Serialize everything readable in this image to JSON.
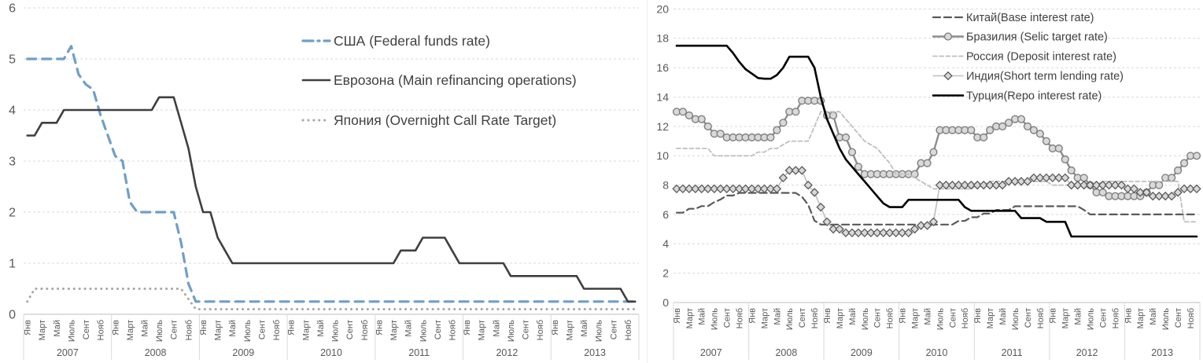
{
  "page": {
    "background": "#ffffff"
  },
  "colors": {
    "axis_text": "#595959",
    "gridline": "#d9d9d9",
    "axis_line": "#bfbfbf",
    "legend_text": "#404040",
    "panel_divider": "#ececec"
  },
  "chart_data": [
    {
      "type": "line",
      "title": "",
      "group": "developed-economies-policy-rates",
      "y_axis": {
        "min": 0,
        "max": 6,
        "step": 1,
        "tick_labels": [
          "0",
          "1",
          "2",
          "3",
          "4",
          "5",
          "6"
        ]
      },
      "years": [
        "2007",
        "2008",
        "2009",
        "2010",
        "2011",
        "2012",
        "2013"
      ],
      "month_tick_labels": [
        "Янв",
        "Март",
        "Май",
        "Июль",
        "Сент",
        "Нояб"
      ],
      "grid": "horizontal-dashed",
      "legend_position": "inside-upper-right",
      "series": [
        {
          "key": "usa",
          "name": "США (Federal funds rate)",
          "color": "#6f9fc8",
          "style": "long-dash",
          "legend_dash": "13 6 2 6",
          "width": 3.2,
          "marker": "none",
          "monthly_values": [
            5,
            5,
            5,
            5,
            5,
            5,
            5.25,
            4.7,
            4.5,
            4.4,
            3.9,
            3.5,
            3.1,
            3,
            2.2,
            2,
            2,
            2,
            2,
            2,
            2,
            1.4,
            0.6,
            0.25,
            0.25,
            0.25,
            0.25,
            0.25,
            0.25,
            0.25,
            0.25,
            0.25,
            0.25,
            0.25,
            0.25,
            0.25,
            0.25,
            0.25,
            0.25,
            0.25,
            0.25,
            0.25,
            0.25,
            0.25,
            0.25,
            0.25,
            0.25,
            0.25,
            0.25,
            0.25,
            0.25,
            0.25,
            0.25,
            0.25,
            0.25,
            0.25,
            0.25,
            0.25,
            0.25,
            0.25,
            0.25,
            0.25,
            0.25,
            0.25,
            0.25,
            0.25,
            0.25,
            0.25,
            0.25,
            0.25,
            0.25,
            0.25,
            0.25,
            0.25,
            0.25,
            0.25,
            0.25,
            0.25,
            0.25,
            0.25,
            0.25,
            0.25,
            0.25,
            0.25
          ]
        },
        {
          "key": "eurozone",
          "name": "Еврозона (Main refinancing operations)",
          "color": "#3f3f3f",
          "style": "solid",
          "width": 2.6,
          "marker": "none",
          "monthly_values": [
            3.5,
            3.5,
            3.75,
            3.75,
            3.75,
            4,
            4,
            4,
            4,
            4,
            4,
            4,
            4,
            4,
            4,
            4,
            4,
            4,
            4.25,
            4.25,
            4.25,
            3.75,
            3.25,
            2.5,
            2,
            2,
            1.5,
            1.25,
            1,
            1,
            1,
            1,
            1,
            1,
            1,
            1,
            1,
            1,
            1,
            1,
            1,
            1,
            1,
            1,
            1,
            1,
            1,
            1,
            1,
            1,
            1,
            1.25,
            1.25,
            1.25,
            1.5,
            1.5,
            1.5,
            1.5,
            1.25,
            1,
            1,
            1,
            1,
            1,
            1,
            1,
            0.75,
            0.75,
            0.75,
            0.75,
            0.75,
            0.75,
            0.75,
            0.75,
            0.75,
            0.75,
            0.5,
            0.5,
            0.5,
            0.5,
            0.5,
            0.5,
            0.25,
            0.25
          ]
        },
        {
          "key": "japan",
          "name": "Япония (Overnight Call Rate Target)",
          "color": "#a6a6a6",
          "style": "dot",
          "width": 3,
          "marker": "none",
          "monthly_values": [
            0.25,
            0.5,
            0.5,
            0.5,
            0.5,
            0.5,
            0.5,
            0.5,
            0.5,
            0.5,
            0.5,
            0.5,
            0.5,
            0.5,
            0.5,
            0.5,
            0.5,
            0.5,
            0.5,
            0.5,
            0.5,
            0.5,
            0.3,
            0.1,
            0.1,
            0.1,
            0.1,
            0.1,
            0.1,
            0.1,
            0.1,
            0.1,
            0.1,
            0.1,
            0.1,
            0.1,
            0.1,
            0.1,
            0.1,
            0.1,
            0.1,
            0.1,
            0.1,
            0.1,
            0.1,
            0.1,
            0.1,
            0.1,
            0.1,
            0.1,
            0.1,
            0.1,
            0.1,
            0.1,
            0.1,
            0.1,
            0.1,
            0.1,
            0.1,
            0.1,
            0.1,
            0.1,
            0.1,
            0.1,
            0.1,
            0.1,
            0.1,
            0.1,
            0.1,
            0.1,
            0.1,
            0.1,
            0.1,
            0.1,
            0.1,
            0.1,
            0.1,
            0.1,
            0.1,
            0.1,
            0.1,
            0.1,
            0.1,
            0.1
          ]
        }
      ]
    },
    {
      "type": "line",
      "title": "",
      "group": "emerging-economies-policy-rates",
      "y_axis": {
        "min": 0,
        "max": 20,
        "step": 2,
        "tick_labels": [
          "0",
          "2",
          "4",
          "6",
          "8",
          "10",
          "12",
          "14",
          "16",
          "18",
          "20"
        ]
      },
      "years": [
        "2007",
        "2008",
        "2009",
        "2010",
        "2011",
        "2012",
        "2013"
      ],
      "month_tick_labels": [
        "Янв",
        "Март",
        "Май",
        "Июль",
        "Сент",
        "Нояб"
      ],
      "grid": "horizontal-dashed",
      "legend_position": "inside-upper-right",
      "series": [
        {
          "key": "china",
          "name": "Китай(Base interest rate)",
          "color": "#595959",
          "style": "dash",
          "width": 2.2,
          "marker": "none",
          "monthly_values": [
            6.12,
            6.12,
            6.39,
            6.39,
            6.57,
            6.57,
            6.84,
            7.02,
            7.29,
            7.29,
            7.47,
            7.47,
            7.47,
            7.47,
            7.47,
            7.47,
            7.47,
            7.47,
            7.47,
            7.47,
            7.2,
            6.66,
            5.58,
            5.31,
            5.31,
            5.31,
            5.31,
            5.31,
            5.31,
            5.31,
            5.31,
            5.31,
            5.31,
            5.31,
            5.31,
            5.31,
            5.31,
            5.31,
            5.31,
            5.31,
            5.31,
            5.31,
            5.31,
            5.31,
            5.31,
            5.56,
            5.56,
            5.81,
            5.81,
            6.06,
            6.06,
            6.31,
            6.31,
            6.31,
            6.56,
            6.56,
            6.56,
            6.56,
            6.56,
            6.56,
            6.56,
            6.56,
            6.56,
            6.56,
            6.56,
            6.31,
            6,
            6,
            6,
            6,
            6,
            6,
            6,
            6,
            6,
            6,
            6,
            6,
            6,
            6,
            6,
            6,
            6,
            6
          ]
        },
        {
          "key": "brazil",
          "name": "Бразилия (Selic target rate)",
          "color": "#8c8c8c",
          "style": "solid",
          "width": 2.4,
          "marker": "circle",
          "marker_fill": "#d9d9d9",
          "marker_stroke": "#7f7f7f",
          "monthly_values": [
            13,
            13,
            12.75,
            12.5,
            12.5,
            12,
            11.5,
            11.5,
            11.25,
            11.25,
            11.25,
            11.25,
            11.25,
            11.25,
            11.25,
            11.25,
            11.75,
            12.25,
            13,
            13,
            13.75,
            13.75,
            13.75,
            13.75,
            12.75,
            12.75,
            11.25,
            11.25,
            10.25,
            9.25,
            8.75,
            8.75,
            8.75,
            8.75,
            8.75,
            8.75,
            8.75,
            8.75,
            8.75,
            9.5,
            9.5,
            10.25,
            11.75,
            11.75,
            11.75,
            11.75,
            11.75,
            11.75,
            11.25,
            11.25,
            11.75,
            12,
            12,
            12.25,
            12.5,
            12.5,
            12,
            11.75,
            11.5,
            11,
            10.5,
            10.5,
            9.75,
            9,
            8.5,
            8.5,
            8,
            7.5,
            7.5,
            7.25,
            7.25,
            7.25,
            7.25,
            7.25,
            7.25,
            7.5,
            8,
            8,
            8.5,
            8.5,
            9,
            9.5,
            10,
            10
          ]
        },
        {
          "key": "russia",
          "name": "Россия (Deposit interest rate)",
          "color": "#bfbfbf",
          "style": "small-dash",
          "width": 1.8,
          "marker": "none",
          "monthly_values": [
            10.5,
            10.5,
            10.5,
            10.5,
            10.5,
            10.5,
            10,
            10,
            10,
            10,
            10,
            10,
            10,
            10.25,
            10.25,
            10.5,
            10.5,
            10.75,
            11,
            11,
            11,
            11,
            12,
            13,
            13,
            13,
            13,
            12.5,
            12,
            11.5,
            11,
            10.75,
            10.5,
            10,
            9.5,
            8.75,
            8.75,
            8.75,
            8.5,
            8.25,
            8,
            7.75,
            7.75,
            7.75,
            7.75,
            7.75,
            7.75,
            7.75,
            8,
            8,
            8.25,
            8.25,
            8.25,
            8.25,
            8.25,
            8.25,
            8.25,
            8.25,
            8.25,
            8.25,
            8,
            8,
            8,
            8,
            8,
            8,
            8,
            8,
            8.25,
            8.25,
            8.25,
            8.25,
            8.25,
            8.25,
            8.25,
            8.25,
            8.25,
            8.25,
            8.25,
            8.25,
            8.25,
            5.5,
            5.5,
            5.5
          ]
        },
        {
          "key": "india",
          "name": "Индия(Short term lending rate)",
          "color": "#bfbfbf",
          "style": "solid",
          "width": 1.6,
          "marker": "diamond",
          "marker_fill": "#d9d9d9",
          "marker_stroke": "#595959",
          "monthly_values": [
            7.75,
            7.75,
            7.75,
            7.75,
            7.75,
            7.75,
            7.75,
            7.75,
            7.75,
            7.75,
            7.75,
            7.75,
            7.75,
            7.75,
            7.75,
            7.75,
            7.75,
            8.5,
            9,
            9,
            9,
            8,
            7.5,
            6.5,
            5.5,
            5,
            5,
            4.75,
            4.75,
            4.75,
            4.75,
            4.75,
            4.75,
            4.75,
            4.75,
            4.75,
            4.75,
            4.75,
            5,
            5.25,
            5.25,
            5.5,
            8,
            8,
            8,
            8,
            8,
            8,
            8,
            8,
            8,
            8,
            8,
            8.25,
            8.25,
            8.25,
            8.25,
            8.5,
            8.5,
            8.5,
            8.5,
            8.5,
            8.5,
            8,
            8,
            8,
            8,
            8,
            8,
            8,
            8,
            8,
            7.75,
            7.75,
            7.5,
            7.5,
            7.25,
            7.25,
            7.25,
            7.25,
            7.5,
            7.75,
            7.75,
            7.75
          ]
        },
        {
          "key": "turkey",
          "name": "Турция(Repo interest rate)",
          "color": "#000000",
          "style": "solid",
          "width": 2.6,
          "marker": "none",
          "monthly_values": [
            17.5,
            17.5,
            17.5,
            17.5,
            17.5,
            17.5,
            17.5,
            17.5,
            17.5,
            17,
            16.4,
            15.9,
            15.6,
            15.3,
            15.25,
            15.25,
            15.5,
            16,
            16.75,
            16.75,
            16.75,
            16.75,
            16,
            14,
            12.5,
            11.5,
            10.5,
            9.75,
            9.25,
            8.75,
            8.25,
            7.75,
            7.25,
            6.75,
            6.5,
            6.5,
            6.5,
            7,
            7,
            7,
            7,
            7,
            7,
            7,
            7,
            7,
            6.5,
            6.25,
            6.25,
            6.25,
            6.25,
            6.25,
            6.25,
            6.25,
            6.25,
            5.75,
            5.75,
            5.75,
            5.75,
            5.5,
            5.5,
            5.5,
            5.5,
            4.5,
            4.5,
            4.5,
            4.5,
            4.5,
            4.5,
            4.5,
            4.5,
            4.5,
            4.5,
            4.5,
            4.5,
            4.5,
            4.5,
            4.5,
            4.5,
            4.5,
            4.5,
            4.5,
            4.5,
            4.5
          ]
        }
      ]
    }
  ]
}
